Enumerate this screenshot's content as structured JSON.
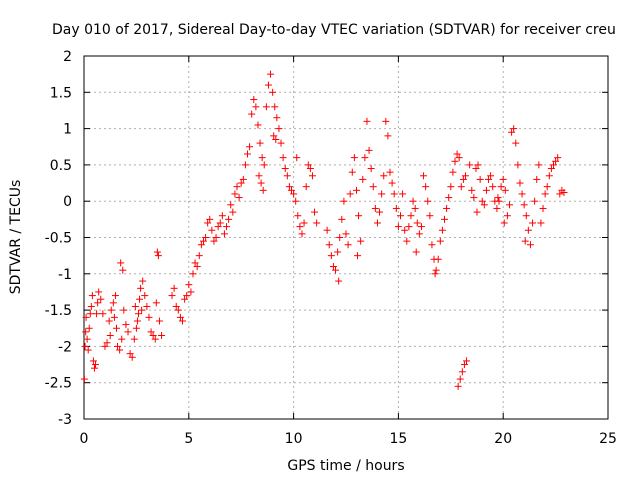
{
  "chart_data": {
    "type": "scatter",
    "title": "Day 010 of 2017, Sidereal Day-to-day VTEC variation (SDTVAR) for receiver creu",
    "xlabel": "GPS time / hours",
    "ylabel": "SDTVAR / TECUs",
    "xlim": [
      0,
      25
    ],
    "ylim": [
      -3,
      2
    ],
    "xticks": [
      0,
      5,
      10,
      15,
      20,
      25
    ],
    "yticks": [
      -3,
      -2.5,
      -2,
      -1.5,
      -1,
      -0.5,
      0,
      0.5,
      1,
      1.5,
      2
    ],
    "xtick_labels": [
      "0",
      "5",
      "10",
      "15",
      "20",
      "25"
    ],
    "ytick_labels": [
      "-3",
      "-2.5",
      "-2",
      "-1.5",
      "-1",
      "-0.5",
      "0",
      "0.5",
      "1",
      "1.5",
      "2"
    ],
    "grid": true,
    "marker": "+",
    "color": "#ff0000",
    "series": [
      {
        "name": "SDTVAR",
        "points": [
          [
            0.02,
            -2.45
          ],
          [
            0.05,
            -2.0
          ],
          [
            0.08,
            -1.8
          ],
          [
            0.1,
            -1.6
          ],
          [
            0.15,
            -1.9
          ],
          [
            0.2,
            -2.05
          ],
          [
            0.25,
            -1.75
          ],
          [
            0.3,
            -1.55
          ],
          [
            0.35,
            -1.45
          ],
          [
            0.4,
            -1.3
          ],
          [
            0.45,
            -2.2
          ],
          [
            0.5,
            -2.3
          ],
          [
            0.55,
            -2.25
          ],
          [
            0.6,
            -1.55
          ],
          [
            0.65,
            -1.4
          ],
          [
            0.7,
            -1.25
          ],
          [
            0.8,
            -1.35
          ],
          [
            0.9,
            -1.55
          ],
          [
            1.0,
            -2.0
          ],
          [
            1.1,
            -1.95
          ],
          [
            1.2,
            -1.65
          ],
          [
            1.3,
            -1.5
          ],
          [
            1.4,
            -1.4
          ],
          [
            1.5,
            -1.3
          ],
          [
            1.6,
            -2.0
          ],
          [
            1.7,
            -2.05
          ],
          [
            1.8,
            -1.9
          ],
          [
            1.75,
            -0.85
          ],
          [
            1.85,
            -0.95
          ],
          [
            1.9,
            -1.5
          ],
          [
            2.0,
            -1.7
          ],
          [
            2.1,
            -1.8
          ],
          [
            2.2,
            -2.1
          ],
          [
            2.3,
            -2.15
          ],
          [
            2.4,
            -1.9
          ],
          [
            2.5,
            -1.75
          ],
          [
            2.6,
            -1.55
          ],
          [
            2.7,
            -1.2
          ],
          [
            2.8,
            -1.1
          ],
          [
            2.9,
            -1.3
          ],
          [
            3.0,
            -1.45
          ],
          [
            3.1,
            -1.6
          ],
          [
            3.2,
            -1.8
          ],
          [
            3.3,
            -1.85
          ],
          [
            3.4,
            -1.9
          ],
          [
            3.5,
            -0.7
          ],
          [
            3.55,
            -0.75
          ],
          [
            3.6,
            -1.65
          ],
          [
            3.7,
            -1.85
          ],
          [
            3.45,
            -1.4
          ],
          [
            2.45,
            -1.45
          ],
          [
            2.55,
            -1.65
          ],
          [
            2.65,
            -1.35
          ],
          [
            2.75,
            -1.5
          ],
          [
            1.45,
            -1.6
          ],
          [
            1.55,
            -1.75
          ],
          [
            1.25,
            -1.85
          ],
          [
            4.2,
            -1.3
          ],
          [
            4.3,
            -1.2
          ],
          [
            4.4,
            -1.45
          ],
          [
            4.5,
            -1.5
          ],
          [
            4.6,
            -1.6
          ],
          [
            4.7,
            -1.65
          ],
          [
            4.8,
            -1.35
          ],
          [
            4.9,
            -1.3
          ],
          [
            5.0,
            -1.15
          ],
          [
            5.1,
            -1.25
          ],
          [
            5.2,
            -1.0
          ],
          [
            5.3,
            -0.85
          ],
          [
            5.4,
            -0.9
          ],
          [
            5.5,
            -0.75
          ],
          [
            5.6,
            -0.6
          ],
          [
            5.7,
            -0.55
          ],
          [
            5.8,
            -0.5
          ],
          [
            5.9,
            -0.3
          ],
          [
            6.0,
            -0.25
          ],
          [
            6.1,
            -0.4
          ],
          [
            6.2,
            -0.55
          ],
          [
            6.3,
            -0.5
          ],
          [
            6.4,
            -0.35
          ],
          [
            6.5,
            -0.3
          ],
          [
            6.6,
            -0.2
          ],
          [
            6.7,
            -0.45
          ],
          [
            6.8,
            -0.35
          ],
          [
            6.9,
            -0.25
          ],
          [
            7.0,
            -0.05
          ],
          [
            7.1,
            -0.15
          ],
          [
            7.2,
            0.1
          ],
          [
            7.3,
            0.2
          ],
          [
            7.4,
            0.05
          ],
          [
            7.5,
            0.25
          ],
          [
            7.6,
            0.3
          ],
          [
            7.7,
            0.5
          ],
          [
            7.8,
            0.65
          ],
          [
            7.9,
            0.75
          ],
          [
            8.0,
            1.2
          ],
          [
            8.1,
            1.4
          ],
          [
            8.2,
            1.3
          ],
          [
            8.3,
            1.05
          ],
          [
            8.4,
            0.8
          ],
          [
            8.5,
            0.6
          ],
          [
            8.6,
            0.5
          ],
          [
            8.7,
            1.3
          ],
          [
            8.8,
            1.6
          ],
          [
            8.9,
            1.75
          ],
          [
            9.0,
            1.5
          ],
          [
            9.1,
            1.3
          ],
          [
            9.2,
            1.15
          ],
          [
            9.3,
            1.0
          ],
          [
            9.4,
            0.8
          ],
          [
            9.5,
            0.6
          ],
          [
            9.6,
            0.45
          ],
          [
            9.7,
            0.35
          ],
          [
            9.8,
            0.2
          ],
          [
            9.9,
            0.15
          ],
          [
            10.0,
            0.1
          ],
          [
            10.1,
            0.0
          ],
          [
            10.2,
            -0.2
          ],
          [
            10.3,
            -0.35
          ],
          [
            10.4,
            -0.45
          ],
          [
            10.5,
            -0.3
          ],
          [
            10.6,
            0.2
          ],
          [
            10.7,
            0.5
          ],
          [
            10.8,
            0.45
          ],
          [
            10.9,
            0.35
          ],
          [
            11.0,
            -0.15
          ],
          [
            11.1,
            -0.3
          ],
          [
            8.35,
            0.35
          ],
          [
            8.45,
            0.25
          ],
          [
            8.55,
            0.15
          ],
          [
            9.05,
            0.9
          ],
          [
            9.15,
            0.85
          ],
          [
            10.15,
            0.6
          ],
          [
            11.6,
            -0.4
          ],
          [
            11.7,
            -0.6
          ],
          [
            11.8,
            -0.75
          ],
          [
            11.9,
            -0.9
          ],
          [
            12.0,
            -0.95
          ],
          [
            12.1,
            -0.7
          ],
          [
            12.2,
            -0.5
          ],
          [
            12.3,
            -0.25
          ],
          [
            12.4,
            0.0
          ],
          [
            12.5,
            -0.45
          ],
          [
            12.6,
            -0.6
          ],
          [
            12.7,
            0.1
          ],
          [
            12.8,
            0.4
          ],
          [
            12.9,
            0.6
          ],
          [
            13.0,
            0.15
          ],
          [
            13.1,
            -0.2
          ],
          [
            13.2,
            -0.55
          ],
          [
            13.3,
            0.3
          ],
          [
            13.4,
            0.6
          ],
          [
            13.5,
            1.1
          ],
          [
            13.6,
            0.7
          ],
          [
            13.7,
            0.45
          ],
          [
            13.8,
            0.2
          ],
          [
            13.9,
            -0.1
          ],
          [
            14.0,
            -0.3
          ],
          [
            14.1,
            -0.15
          ],
          [
            14.2,
            0.1
          ],
          [
            14.3,
            0.35
          ],
          [
            14.4,
            1.1
          ],
          [
            14.5,
            0.9
          ],
          [
            14.6,
            0.4
          ],
          [
            14.7,
            0.25
          ],
          [
            14.8,
            0.1
          ],
          [
            14.9,
            -0.1
          ],
          [
            15.0,
            -0.35
          ],
          [
            15.1,
            -0.2
          ],
          [
            15.2,
            0.1
          ],
          [
            15.3,
            -0.4
          ],
          [
            15.4,
            -0.55
          ],
          [
            15.5,
            -0.35
          ],
          [
            15.6,
            -0.2
          ],
          [
            15.7,
            0.0
          ],
          [
            15.8,
            -0.1
          ],
          [
            15.9,
            -0.3
          ],
          [
            16.0,
            -0.45
          ],
          [
            16.1,
            -0.35
          ],
          [
            16.2,
            0.35
          ],
          [
            16.3,
            0.2
          ],
          [
            16.4,
            0.0
          ],
          [
            16.5,
            -0.2
          ],
          [
            16.6,
            -0.6
          ],
          [
            16.7,
            -0.8
          ],
          [
            16.8,
            -0.95
          ],
          [
            16.9,
            -0.8
          ],
          [
            17.0,
            -0.55
          ],
          [
            17.1,
            -0.4
          ],
          [
            17.2,
            -0.25
          ],
          [
            17.3,
            -0.1
          ],
          [
            17.4,
            0.05
          ],
          [
            17.5,
            0.2
          ],
          [
            17.6,
            0.4
          ],
          [
            17.7,
            0.55
          ],
          [
            17.8,
            0.65
          ],
          [
            17.9,
            0.6
          ],
          [
            18.0,
            0.2
          ],
          [
            18.1,
            0.3
          ],
          [
            18.2,
            0.35
          ],
          [
            17.85,
            -2.55
          ],
          [
            17.95,
            -2.45
          ],
          [
            18.05,
            -2.35
          ],
          [
            18.15,
            -2.25
          ],
          [
            18.25,
            -2.2
          ],
          [
            18.4,
            0.5
          ],
          [
            18.5,
            0.15
          ],
          [
            18.6,
            0.05
          ],
          [
            18.7,
            0.45
          ],
          [
            18.8,
            0.5
          ],
          [
            18.9,
            0.3
          ],
          [
            19.0,
            0.0
          ],
          [
            19.1,
            -0.05
          ],
          [
            19.2,
            0.15
          ],
          [
            19.3,
            0.3
          ],
          [
            19.4,
            0.35
          ],
          [
            19.5,
            0.2
          ],
          [
            19.6,
            0.0
          ],
          [
            19.7,
            -0.1
          ],
          [
            19.8,
            0.0
          ],
          [
            19.9,
            0.2
          ],
          [
            20.0,
            0.3
          ],
          [
            20.1,
            0.15
          ],
          [
            20.2,
            -0.2
          ],
          [
            20.3,
            -0.05
          ],
          [
            20.4,
            0.95
          ],
          [
            20.5,
            1.0
          ],
          [
            20.6,
            0.8
          ],
          [
            20.7,
            0.5
          ],
          [
            20.8,
            0.25
          ],
          [
            20.9,
            0.1
          ],
          [
            21.0,
            -0.05
          ],
          [
            21.1,
            -0.2
          ],
          [
            21.2,
            -0.4
          ],
          [
            21.3,
            -0.6
          ],
          [
            21.4,
            -0.3
          ],
          [
            21.5,
            0.0
          ],
          [
            21.6,
            0.3
          ],
          [
            21.7,
            0.5
          ],
          [
            21.8,
            -0.3
          ],
          [
            21.9,
            -0.1
          ],
          [
            22.0,
            0.1
          ],
          [
            22.1,
            0.2
          ],
          [
            22.2,
            0.35
          ],
          [
            22.3,
            0.45
          ],
          [
            22.4,
            0.5
          ],
          [
            22.5,
            0.55
          ],
          [
            22.6,
            0.6
          ],
          [
            22.7,
            0.1
          ],
          [
            22.8,
            0.15
          ],
          [
            22.9,
            0.12
          ],
          [
            20.05,
            -0.3
          ],
          [
            21.05,
            -0.55
          ],
          [
            13.05,
            -0.75
          ],
          [
            12.15,
            -1.1
          ],
          [
            16.75,
            -1.0
          ],
          [
            15.85,
            -0.7
          ],
          [
            19.75,
            0.05
          ],
          [
            18.75,
            -0.15
          ]
        ]
      }
    ]
  }
}
